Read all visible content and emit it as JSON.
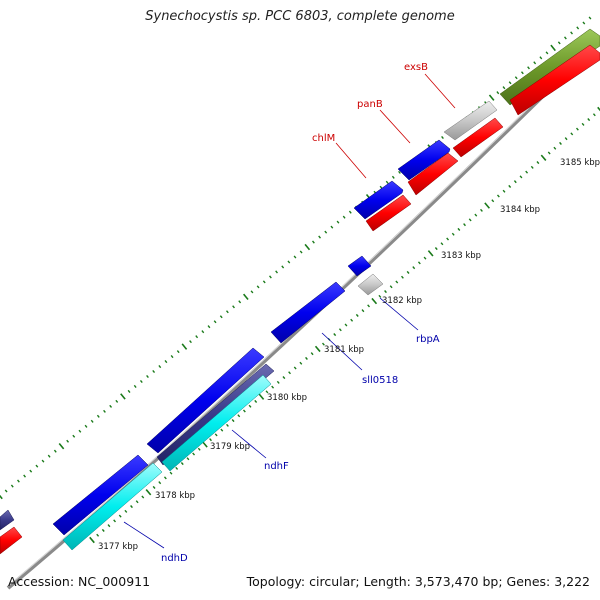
{
  "header": {
    "title": "Synechocystis sp. PCC 6803, complete genome"
  },
  "footer": {
    "accession": "Accession: NC_000911",
    "summary": "Topology: circular; Length: 3,573,470 bp; Genes: 3,222"
  },
  "ruler": {
    "kbp_labels": [
      "3177 kbp",
      "3178 kbp",
      "3179 kbp",
      "3180 kbp",
      "3181 kbp",
      "3182 kbp",
      "3183 kbp",
      "3184 kbp",
      "3185 kbp"
    ]
  },
  "gene_labels": {
    "chlM": "chlM",
    "panB": "panB",
    "exsB": "exsB",
    "rbpA": "rbpA",
    "sll0518": "sll0518",
    "ndhF": "ndhF",
    "ndhD": "ndhD"
  },
  "colors": {
    "forward_cds": "#0000dd",
    "reverse_cds": "#ff0000",
    "cyan_feature": "#00eeee",
    "dark_feature": "#3a3a8a",
    "olive_feature": "#6e9a2a",
    "gray_feature": "#c0c0c0",
    "backbone": "#8a8a8a",
    "tick": "#1a7a1a",
    "forward_label": "#0000aa",
    "reverse_label": "#cc0000"
  }
}
